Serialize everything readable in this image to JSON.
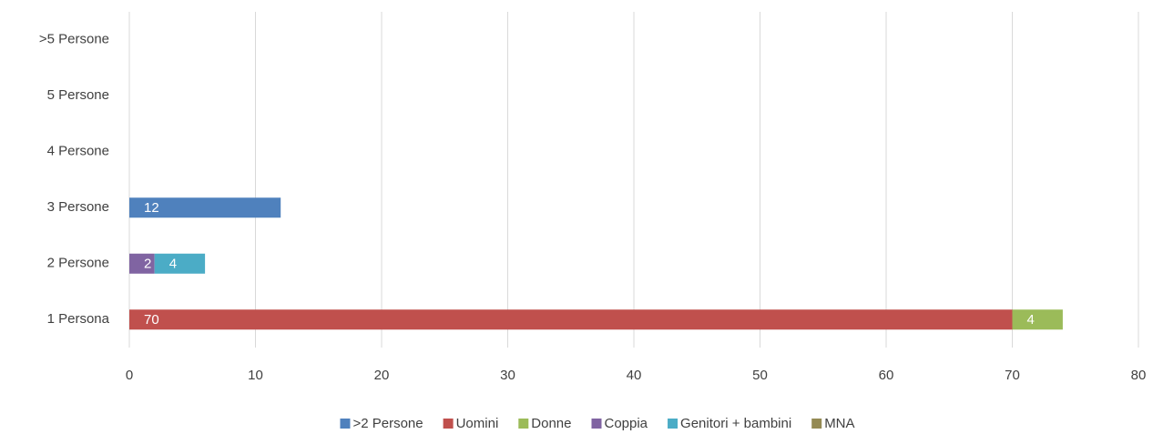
{
  "chart_data": {
    "type": "stacked-barh",
    "categories": [
      "1 Persona",
      "2 Persone",
      "3 Persone",
      "4 Persone",
      "5 Persone",
      ">5 Persone"
    ],
    "series": [
      {
        "name": ">2 Persone",
        "color": "#4f81bd",
        "values": [
          null,
          null,
          12,
          null,
          null,
          null
        ]
      },
      {
        "name": "Uomini",
        "color": "#c0504d",
        "values": [
          70,
          null,
          null,
          null,
          null,
          null
        ]
      },
      {
        "name": "Donne",
        "color": "#9bbb59",
        "values": [
          4,
          null,
          null,
          null,
          null,
          null
        ]
      },
      {
        "name": "Coppia",
        "color": "#8064a2",
        "values": [
          null,
          2,
          null,
          null,
          null,
          null
        ]
      },
      {
        "name": "Genitori + bambini",
        "color": "#4bacc6",
        "values": [
          null,
          4,
          null,
          null,
          null,
          null
        ]
      },
      {
        "name": "MNA",
        "color": "#948a54",
        "values": [
          null,
          null,
          null,
          null,
          null,
          null
        ]
      }
    ],
    "xlim": [
      0,
      80
    ],
    "xticks": [
      0,
      10,
      20,
      30,
      40,
      50,
      60,
      70,
      80
    ],
    "grid": true,
    "legend": "bottom"
  }
}
